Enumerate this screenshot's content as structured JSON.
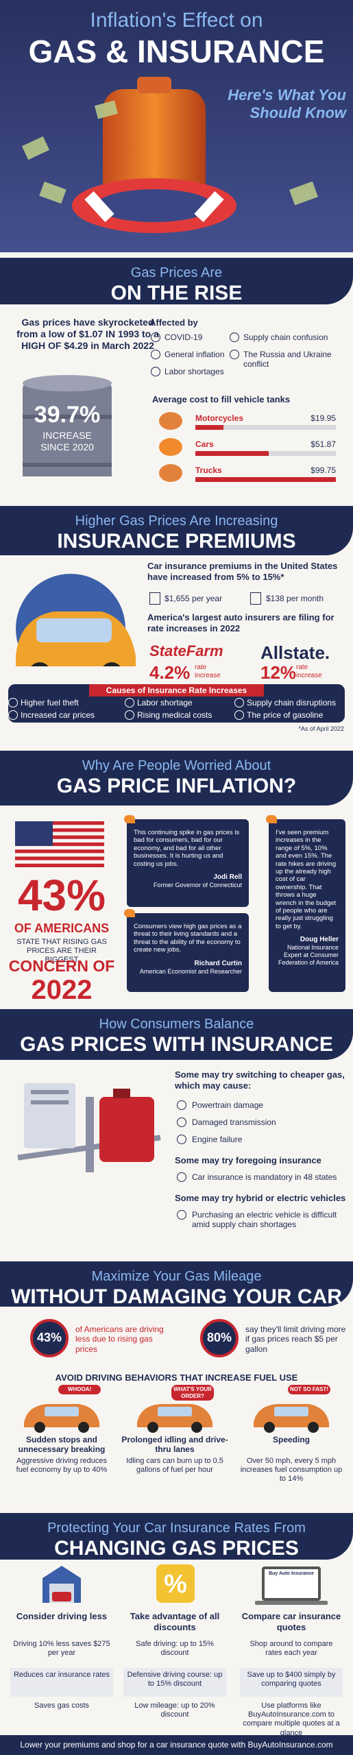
{
  "header": {
    "title_top": "Inflation's Effect on",
    "title_main": "GAS & INSURANCE",
    "subtitle": "Here's What You Should Know"
  },
  "gas": {
    "heading_top": "Gas Prices Are",
    "heading_main": "ON THE RISE",
    "intro": "Gas prices have skyrocketed from a low of $1.07 IN 1993 to a HIGH OF $4.29 in March 2022",
    "barrel_stat": "39.7%",
    "barrel_label": "INCREASE SINCE 2020",
    "affected_title": "Affected by",
    "factors": [
      "COVID-19",
      "Supply chain confusion",
      "General inflation",
      "The Russia and Ukraine conflict",
      "Labor shortages"
    ],
    "tank_title": "Average cost to fill vehicle tanks",
    "vehicles": [
      {
        "name": "Motorcycles",
        "cost": "$19.95"
      },
      {
        "name": "Cars",
        "cost": "$51.87"
      },
      {
        "name": "Trucks",
        "cost": "$99.75"
      }
    ]
  },
  "insurance": {
    "heading_top": "Higher Gas Prices Are Increasing",
    "heading_main": "INSURANCE PREMIUMS",
    "premium_text": "Car insurance premiums in the United States have increased from 5% to 15%*",
    "per_year": "$1,655 per year",
    "per_month": "$138 per month",
    "filing_text": "America's largest auto insurers are filing for rate increases in 2022",
    "insurers": [
      {
        "name": "StateFarm",
        "increase": "4.2%",
        "label": "rate increase"
      },
      {
        "name": "Allstate.",
        "increase": "12%",
        "label": "rate increase"
      }
    ],
    "causes_title": "Causes of Insurance Rate Increases",
    "causes": [
      "Higher fuel theft",
      "Labor shortage",
      "Supply chain disruptions",
      "Increased car prices",
      "Rising medical costs",
      "The price of gasoline"
    ],
    "footnote": "*As of April 2022"
  },
  "worried": {
    "heading_top": "Why Are People Worried About",
    "heading_main": "GAS PRICE INFLATION?",
    "stat": "43%",
    "stat_label": "OF AMERICANS",
    "stat_text": "STATE THAT RISING GAS PRICES ARE THEIR BIGGEST",
    "concern": "CONCERN OF",
    "year": "2022",
    "quotes": [
      {
        "text": "This continuing spike in gas prices is bad for consumers, bad for our economy, and bad for all other businesses. It is hurting us and costing us jobs.",
        "author": "Jodi Rell",
        "role": "Former Governor of Connecticut"
      },
      {
        "text": "Consumers view high gas prices as a threat to their living standards and a threat to the ability of the economy to create new jobs.",
        "author": "Richard Curtin",
        "role": "American Economist and Researcher"
      },
      {
        "text": "I've seen premium increases in the range of 5%, 10% and even 15%. The rate hikes are driving up the already high cost of car ownership. That throws a huge wrench in the budget of people who are really just struggling to get by.",
        "author": "Doug Heller",
        "role": "National Insurance Expert at Consumer Federation of America"
      }
    ]
  },
  "balance": {
    "heading_top": "How Consumers Balance",
    "heading_main": "GAS PRICES WITH INSURANCE",
    "groups": [
      {
        "title": "Some may try switching to cheaper gas, which may cause:",
        "items": [
          "Powertrain damage",
          "Damaged transmission",
          "Engine failure"
        ]
      },
      {
        "title": "Some may try foregoing insurance",
        "items": [
          "Car insurance is mandatory in 48 states"
        ]
      },
      {
        "title": "Some may try hybrid or electric vehicles",
        "items": [
          "Purchasing an electric vehicle is difficult amid supply chain shortages"
        ]
      }
    ]
  },
  "mileage": {
    "heading_top": "Maximize Your Gas Mileage",
    "heading_main": "WITHOUT DAMAGING YOUR CAR",
    "stats": [
      {
        "value": "43%",
        "text": "of Americans are driving less due to rising gas prices"
      },
      {
        "value": "80%",
        "text": "say they'll limit driving more if gas prices reach $5 per gallon"
      }
    ],
    "behaviors_title": "AVOID DRIVING BEHAVIORS THAT INCREASE FUEL USE",
    "behaviors": [
      {
        "bubble": "WHOOA!",
        "title": "Sudden stops and unnecessary breaking",
        "text": "Aggressive driving reduces fuel economy by up to 40%"
      },
      {
        "bubble": "WHAT'S YOUR ORDER?",
        "title": "Prolonged idling and drive-thru lanes",
        "text": "Idling cars can burn up to 0.5 gallons of fuel per hour"
      },
      {
        "bubble": "NOT SO FAST!",
        "title": "Speeding",
        "text": "Over 50 mph, every 5 mph increases fuel consumption up to 14%"
      }
    ]
  },
  "protect": {
    "heading_top": "Protecting Your Car Insurance Rates From",
    "heading_main": "CHANGING GAS PRICES",
    "discount_icon": "%",
    "laptop_label": "Buy Auto Insurance",
    "columns": [
      {
        "title": "Consider driving less",
        "items": [
          "Driving 10% less saves $275 per year",
          "Reduces car insurance rates",
          "Saves gas costs"
        ]
      },
      {
        "title": "Take advantage of all discounts",
        "items": [
          "Safe driving: up to 15% discount",
          "Defensive driving course: up to 15% discount",
          "Low mileage: up to 20% discount"
        ]
      },
      {
        "title": "Compare car insurance quotes",
        "items": [
          "Shop around to compare rates each year",
          "Save up to $400 simply by comparing quotes",
          "Use platforms like BuyAutoInsurance.com to compare multiple quotes at a glance"
        ]
      }
    ]
  },
  "footer": {
    "text": "Lower your premiums and shop for a car insurance quote with BuyAutoInsurance.com"
  }
}
